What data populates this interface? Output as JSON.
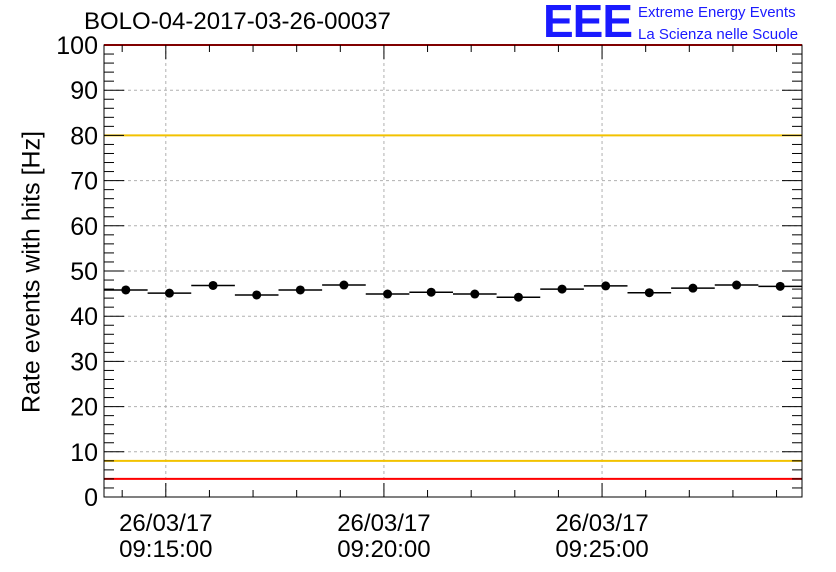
{
  "header": {
    "title": "BOLO-04-2017-03-26-00037",
    "logo": {
      "mark": "EEE",
      "line1": "Extreme Energy Events",
      "line2": "La Scienza nelle Scuole",
      "color": "#1a1aff"
    }
  },
  "chart_data": {
    "type": "scatter",
    "title": "BOLO-04-2017-03-26-00037",
    "xlabel": "",
    "ylabel": "Rate events with hits [Hz]",
    "ylim": [
      0,
      100
    ],
    "yticks": [
      0,
      10,
      20,
      30,
      40,
      50,
      60,
      70,
      80,
      90,
      100
    ],
    "xlim": [
      "26/03/17 09:13:35",
      "26/03/17 09:29:35"
    ],
    "xticks": [
      {
        "date": "26/03/17",
        "time": "09:15:00"
      },
      {
        "date": "26/03/17",
        "time": "09:20:00"
      },
      {
        "date": "26/03/17",
        "time": "09:25:00"
      }
    ],
    "bin_width_seconds": 60,
    "grid": true,
    "points": [
      {
        "x": "09:14:05",
        "y": 45.8
      },
      {
        "x": "09:15:05",
        "y": 45.1
      },
      {
        "x": "09:16:05",
        "y": 46.8
      },
      {
        "x": "09:17:05",
        "y": 44.7
      },
      {
        "x": "09:18:05",
        "y": 45.8
      },
      {
        "x": "09:19:05",
        "y": 46.9
      },
      {
        "x": "09:20:05",
        "y": 44.9
      },
      {
        "x": "09:21:05",
        "y": 45.3
      },
      {
        "x": "09:22:05",
        "y": 44.9
      },
      {
        "x": "09:23:05",
        "y": 44.2
      },
      {
        "x": "09:24:05",
        "y": 46.0
      },
      {
        "x": "09:25:05",
        "y": 46.7
      },
      {
        "x": "09:26:05",
        "y": 45.2
      },
      {
        "x": "09:27:05",
        "y": 46.2
      },
      {
        "x": "09:28:05",
        "y": 46.9
      },
      {
        "x": "09:29:05",
        "y": 46.6
      }
    ],
    "reference_lines": [
      {
        "y": 100,
        "color": "#ff0000"
      },
      {
        "y": 80,
        "color": "#f2c200"
      },
      {
        "y": 8,
        "color": "#f2c200"
      },
      {
        "y": 4,
        "color": "#ff0000"
      }
    ],
    "marker_color": "#000000",
    "grid_color": "#b0b0b0"
  }
}
